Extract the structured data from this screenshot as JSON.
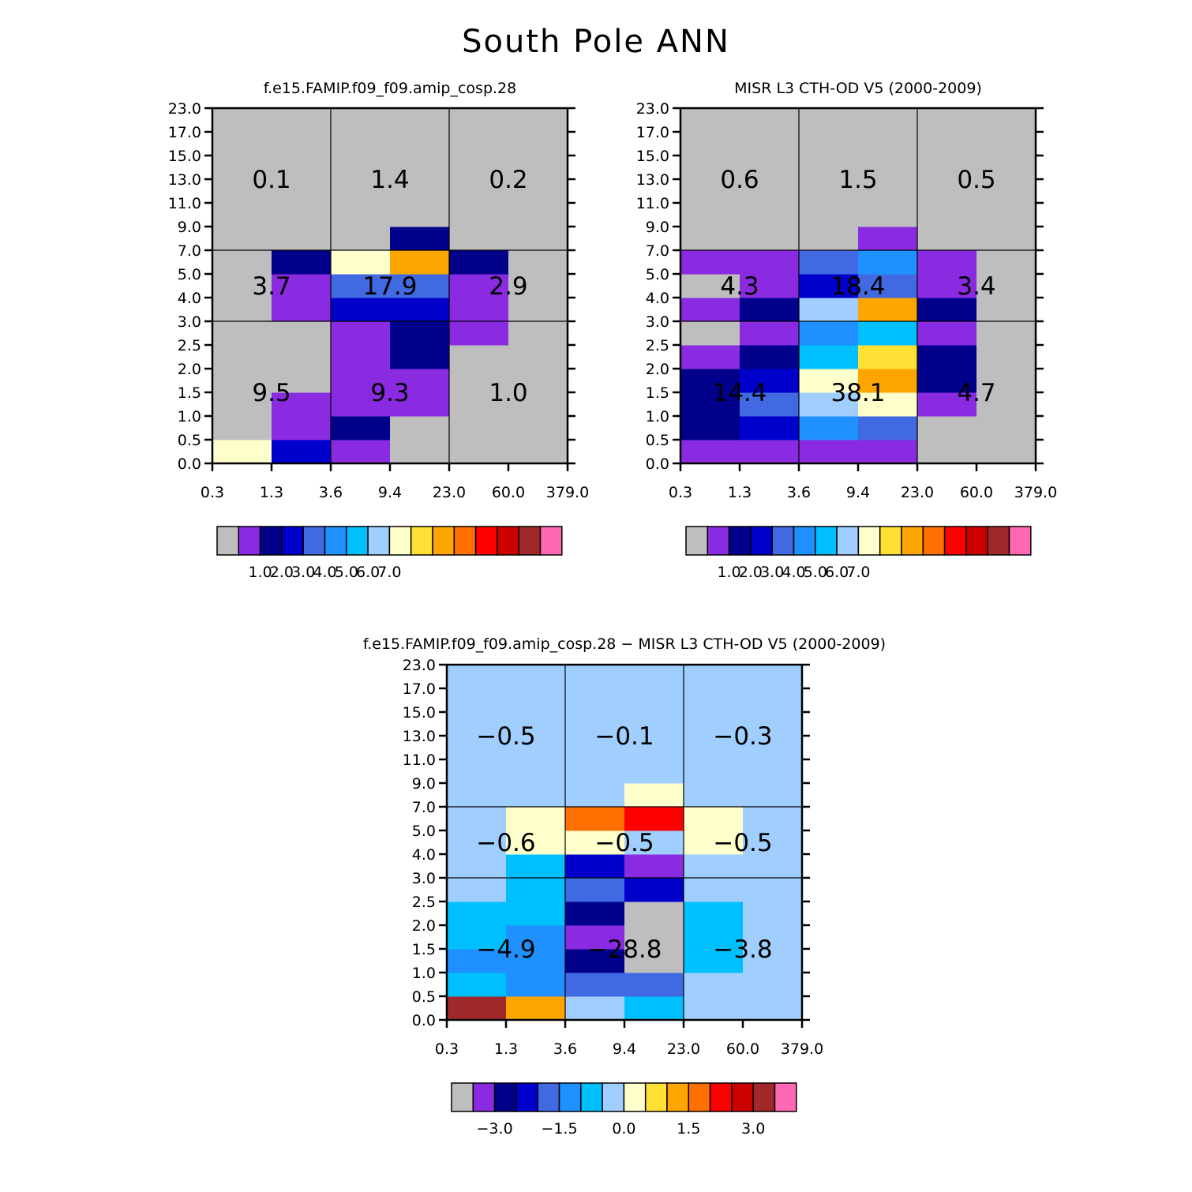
{
  "main_title": "South Pole ANN",
  "chart_data": [
    {
      "type": "heatmap",
      "title": "f.e15.FAMIP.f09_f09.amip_cosp.28",
      "xlabel": "",
      "ylabel": "",
      "x_ticks": [
        "0.3",
        "1.3",
        "3.6",
        "9.4",
        "23.0",
        "60.0",
        "379.0"
      ],
      "y_ticks": [
        "0.0",
        "0.5",
        "1.0",
        "1.5",
        "2.0",
        "2.5",
        "3.0",
        "4.0",
        "5.0",
        "7.0",
        "9.0",
        "11.0",
        "13.0",
        "15.0",
        "17.0",
        "23.0"
      ],
      "cell_colors": [
        [
          "#FFFFCC",
          "#0000CD",
          "#8A2BE2",
          "#BEBEBE",
          "#BEBEBE",
          "#BEBEBE"
        ],
        [
          "#BEBEBE",
          "#8A2BE2",
          "#00008B",
          "#BEBEBE",
          "#BEBEBE",
          "#BEBEBE"
        ],
        [
          "#BEBEBE",
          "#8A2BE2",
          "#8A2BE2",
          "#8A2BE2",
          "#BEBEBE",
          "#BEBEBE"
        ],
        [
          "#BEBEBE",
          "#BEBEBE",
          "#8A2BE2",
          "#8A2BE2",
          "#BEBEBE",
          "#BEBEBE"
        ],
        [
          "#BEBEBE",
          "#BEBEBE",
          "#8A2BE2",
          "#00008B",
          "#BEBEBE",
          "#BEBEBE"
        ],
        [
          "#BEBEBE",
          "#BEBEBE",
          "#8A2BE2",
          "#00008B",
          "#8A2BE2",
          "#BEBEBE"
        ],
        [
          "#BEBEBE",
          "#8A2BE2",
          "#0000CD",
          "#0000CD",
          "#8A2BE2",
          "#BEBEBE"
        ],
        [
          "#BEBEBE",
          "#8A2BE2",
          "#4169E1",
          "#4169E1",
          "#8A2BE2",
          "#BEBEBE"
        ],
        [
          "#BEBEBE",
          "#00008B",
          "#FFFFCC",
          "#FFA500",
          "#00008B",
          "#BEBEBE"
        ],
        [
          "#BEBEBE",
          "#BEBEBE",
          "#BEBEBE",
          "#00008B",
          "#BEBEBE",
          "#BEBEBE"
        ],
        [
          "#BEBEBE",
          "#BEBEBE",
          "#BEBEBE",
          "#BEBEBE",
          "#BEBEBE",
          "#BEBEBE"
        ],
        [
          "#BEBEBE",
          "#BEBEBE",
          "#BEBEBE",
          "#BEBEBE",
          "#BEBEBE",
          "#BEBEBE"
        ],
        [
          "#BEBEBE",
          "#BEBEBE",
          "#BEBEBE",
          "#BEBEBE",
          "#BEBEBE",
          "#BEBEBE"
        ],
        [
          "#BEBEBE",
          "#BEBEBE",
          "#BEBEBE",
          "#BEBEBE",
          "#BEBEBE",
          "#BEBEBE"
        ],
        [
          "#BEBEBE",
          "#BEBEBE",
          "#BEBEBE",
          "#BEBEBE",
          "#BEBEBE",
          "#BEBEBE"
        ]
      ],
      "block_sums": [
        [
          "9.5",
          "9.3",
          "1.0"
        ],
        [
          "3.7",
          "17.9",
          "2.9"
        ],
        [
          "0.1",
          "1.4",
          "0.2"
        ]
      ],
      "colorbar": {
        "colors": [
          "#BEBEBE",
          "#8A2BE2",
          "#00008B",
          "#0000CD",
          "#4169E1",
          "#1E90FF",
          "#00BFFF",
          "#A0CFFF",
          "#FFFFCC",
          "#FFE135",
          "#FFA500",
          "#FF7000",
          "#FF0000",
          "#CD0000",
          "#A0282A",
          "#FF69B4"
        ],
        "labels": [
          "1.0",
          "2.0",
          "3.0",
          "4.0",
          "5.0",
          "6.0",
          "7.0"
        ]
      }
    },
    {
      "type": "heatmap",
      "title": "MISR L3 CTH-OD V5 (2000-2009)",
      "xlabel": "",
      "ylabel": "",
      "x_ticks": [
        "0.3",
        "1.3",
        "3.6",
        "9.4",
        "23.0",
        "60.0",
        "379.0"
      ],
      "y_ticks": [
        "0.0",
        "0.5",
        "1.0",
        "1.5",
        "2.0",
        "2.5",
        "3.0",
        "4.0",
        "5.0",
        "7.0",
        "9.0",
        "11.0",
        "13.0",
        "15.0",
        "17.0",
        "23.0"
      ],
      "cell_colors": [
        [
          "#8A2BE2",
          "#8A2BE2",
          "#8A2BE2",
          "#8A2BE2",
          "#BEBEBE",
          "#BEBEBE"
        ],
        [
          "#00008B",
          "#0000CD",
          "#1E90FF",
          "#4169E1",
          "#BEBEBE",
          "#BEBEBE"
        ],
        [
          "#00008B",
          "#4169E1",
          "#A0CFFF",
          "#FFFFCC",
          "#8A2BE2",
          "#BEBEBE"
        ],
        [
          "#00008B",
          "#0000CD",
          "#FFFFCC",
          "#FFA500",
          "#00008B",
          "#BEBEBE"
        ],
        [
          "#8A2BE2",
          "#00008B",
          "#00BFFF",
          "#FFE135",
          "#00008B",
          "#BEBEBE"
        ],
        [
          "#BEBEBE",
          "#8A2BE2",
          "#1E90FF",
          "#00BFFF",
          "#8A2BE2",
          "#BEBEBE"
        ],
        [
          "#8A2BE2",
          "#00008B",
          "#A0CFFF",
          "#FFA500",
          "#00008B",
          "#BEBEBE"
        ],
        [
          "#BEBEBE",
          "#8A2BE2",
          "#0000CD",
          "#4169E1",
          "#8A2BE2",
          "#BEBEBE"
        ],
        [
          "#8A2BE2",
          "#8A2BE2",
          "#4169E1",
          "#1E90FF",
          "#8A2BE2",
          "#BEBEBE"
        ],
        [
          "#BEBEBE",
          "#BEBEBE",
          "#BEBEBE",
          "#8A2BE2",
          "#BEBEBE",
          "#BEBEBE"
        ],
        [
          "#BEBEBE",
          "#BEBEBE",
          "#BEBEBE",
          "#BEBEBE",
          "#BEBEBE",
          "#BEBEBE"
        ],
        [
          "#BEBEBE",
          "#BEBEBE",
          "#BEBEBE",
          "#BEBEBE",
          "#BEBEBE",
          "#BEBEBE"
        ],
        [
          "#BEBEBE",
          "#BEBEBE",
          "#BEBEBE",
          "#BEBEBE",
          "#BEBEBE",
          "#BEBEBE"
        ],
        [
          "#BEBEBE",
          "#BEBEBE",
          "#BEBEBE",
          "#BEBEBE",
          "#BEBEBE",
          "#BEBEBE"
        ],
        [
          "#BEBEBE",
          "#BEBEBE",
          "#BEBEBE",
          "#BEBEBE",
          "#BEBEBE",
          "#BEBEBE"
        ]
      ],
      "block_sums": [
        [
          "14.4",
          "38.1",
          "4.7"
        ],
        [
          "4.3",
          "18.4",
          "3.4"
        ],
        [
          "0.6",
          "1.5",
          "0.5"
        ]
      ],
      "colorbar": {
        "colors": [
          "#BEBEBE",
          "#8A2BE2",
          "#00008B",
          "#0000CD",
          "#4169E1",
          "#1E90FF",
          "#00BFFF",
          "#A0CFFF",
          "#FFFFCC",
          "#FFE135",
          "#FFA500",
          "#FF7000",
          "#FF0000",
          "#CD0000",
          "#A0282A",
          "#FF69B4"
        ],
        "labels": [
          "1.0",
          "2.0",
          "3.0",
          "4.0",
          "5.0",
          "6.0",
          "7.0"
        ]
      }
    },
    {
      "type": "heatmap",
      "title": "f.e15.FAMIP.f09_f09.amip_cosp.28 − MISR L3 CTH-OD V5 (2000-2009)",
      "xlabel": "",
      "ylabel": "",
      "x_ticks": [
        "0.3",
        "1.3",
        "3.6",
        "9.4",
        "23.0",
        "60.0",
        "379.0"
      ],
      "y_ticks": [
        "0.0",
        "0.5",
        "1.0",
        "1.5",
        "2.0",
        "2.5",
        "3.0",
        "4.0",
        "5.0",
        "7.0",
        "9.0",
        "11.0",
        "13.0",
        "15.0",
        "17.0",
        "23.0"
      ],
      "cell_colors": [
        [
          "#A0282A",
          "#FFA500",
          "#A0CFFF",
          "#00BFFF",
          "#A0CFFF",
          "#A0CFFF"
        ],
        [
          "#00BFFF",
          "#1E90FF",
          "#4169E1",
          "#4169E1",
          "#A0CFFF",
          "#A0CFFF"
        ],
        [
          "#1E90FF",
          "#1E90FF",
          "#00008B",
          "#BEBEBE",
          "#00BFFF",
          "#A0CFFF"
        ],
        [
          "#00BFFF",
          "#1E90FF",
          "#8A2BE2",
          "#BEBEBE",
          "#00BFFF",
          "#A0CFFF"
        ],
        [
          "#00BFFF",
          "#00BFFF",
          "#00008B",
          "#BEBEBE",
          "#00BFFF",
          "#A0CFFF"
        ],
        [
          "#A0CFFF",
          "#00BFFF",
          "#4169E1",
          "#0000CD",
          "#A0CFFF",
          "#A0CFFF"
        ],
        [
          "#A0CFFF",
          "#00BFFF",
          "#0000CD",
          "#8A2BE2",
          "#A0CFFF",
          "#A0CFFF"
        ],
        [
          "#A0CFFF",
          "#FFFFCC",
          "#FFFFCC",
          "#A0CFFF",
          "#FFFFCC",
          "#A0CFFF"
        ],
        [
          "#A0CFFF",
          "#FFFFCC",
          "#FF7000",
          "#FF0000",
          "#FFFFCC",
          "#A0CFFF"
        ],
        [
          "#A0CFFF",
          "#A0CFFF",
          "#A0CFFF",
          "#FFFFCC",
          "#A0CFFF",
          "#A0CFFF"
        ],
        [
          "#A0CFFF",
          "#A0CFFF",
          "#A0CFFF",
          "#A0CFFF",
          "#A0CFFF",
          "#A0CFFF"
        ],
        [
          "#A0CFFF",
          "#A0CFFF",
          "#A0CFFF",
          "#A0CFFF",
          "#A0CFFF",
          "#A0CFFF"
        ],
        [
          "#A0CFFF",
          "#A0CFFF",
          "#A0CFFF",
          "#A0CFFF",
          "#A0CFFF",
          "#A0CFFF"
        ],
        [
          "#A0CFFF",
          "#A0CFFF",
          "#A0CFFF",
          "#A0CFFF",
          "#A0CFFF",
          "#A0CFFF"
        ],
        [
          "#A0CFFF",
          "#A0CFFF",
          "#A0CFFF",
          "#A0CFFF",
          "#A0CFFF",
          "#A0CFFF"
        ]
      ],
      "block_sums": [
        [
          "−4.9",
          "−28.8",
          "−3.8"
        ],
        [
          "−0.6",
          "−0.5",
          "−0.5"
        ],
        [
          "−0.5",
          "−0.1",
          "−0.3"
        ]
      ],
      "colorbar": {
        "colors": [
          "#BEBEBE",
          "#8A2BE2",
          "#00008B",
          "#0000CD",
          "#4169E1",
          "#1E90FF",
          "#00BFFF",
          "#A0CFFF",
          "#FFFFCC",
          "#FFE135",
          "#FFA500",
          "#FF7000",
          "#FF0000",
          "#CD0000",
          "#A0282A",
          "#FF69B4"
        ],
        "labels": [
          "−3.0",
          "−1.5",
          "0.0",
          "1.5",
          "3.0"
        ]
      }
    }
  ]
}
